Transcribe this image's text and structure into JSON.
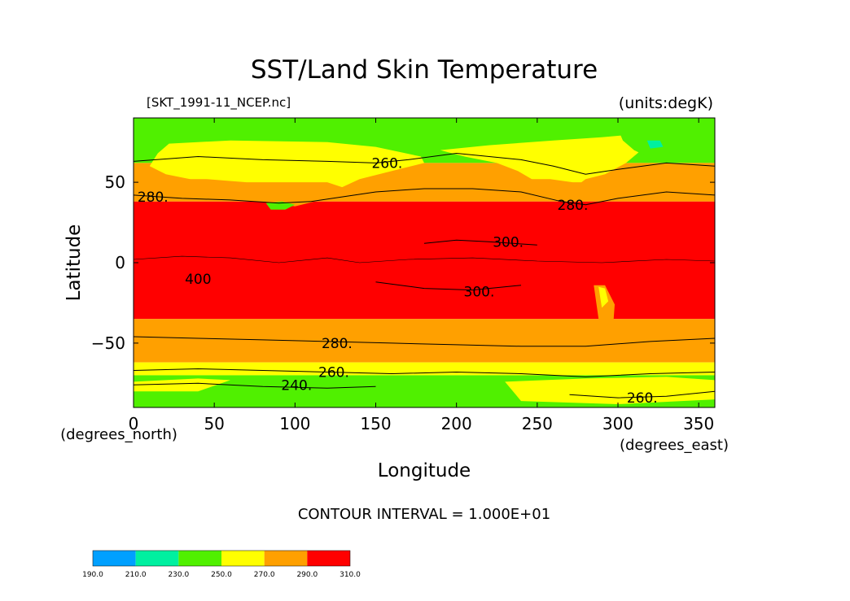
{
  "chart_data": {
    "type": "heatmap",
    "title": "SST/Land Skin Temperature",
    "source_label": "[SKT_1991-11_NCEP.nc]",
    "units_label": "(units:degK)",
    "xlabel": "Longitude",
    "ylabel": "Latitude",
    "x_unit_label": "(degrees_east)",
    "y_unit_label": "(degrees_north)",
    "xlim": [
      0,
      360
    ],
    "ylim": [
      -90,
      90
    ],
    "x_ticks": [
      0,
      50,
      100,
      150,
      200,
      250,
      300,
      350
    ],
    "y_ticks": [
      50,
      0,
      -50
    ],
    "contour_interval_text": "CONTOUR INTERVAL = 1.000E+01",
    "levels": [
      190,
      210,
      230,
      250,
      270,
      290,
      310
    ],
    "level_labels": [
      "190.0",
      "210.0",
      "230.0",
      "250.0",
      "270.0",
      "290.0",
      "310.0"
    ],
    "colors": [
      "#00a0ff",
      "#00f0a0",
      "#50f000",
      "#ffff00",
      "#ffa000",
      "#ff0000"
    ],
    "contour_labels": [
      {
        "text": "260.",
        "lon": 157,
        "lat": 62
      },
      {
        "text": "280.",
        "lon": 12,
        "lat": 41
      },
      {
        "text": "280.",
        "lon": 272,
        "lat": 36
      },
      {
        "text": "300.",
        "lon": 232,
        "lat": 13
      },
      {
        "text": "300.",
        "lon": 214,
        "lat": -18
      },
      {
        "text": "400",
        "lon": 40,
        "lat": -10
      },
      {
        "text": "280.",
        "lon": 126,
        "lat": -50
      },
      {
        "text": "260.",
        "lon": 124,
        "lat": -68
      },
      {
        "text": "240.",
        "lon": 101,
        "lat": -76
      },
      {
        "text": "260.",
        "lon": 315,
        "lat": -84
      }
    ]
  }
}
